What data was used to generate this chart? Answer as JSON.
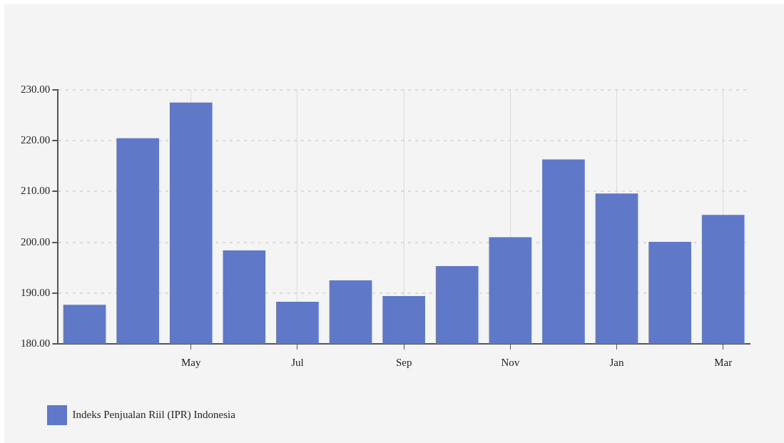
{
  "chart_data": {
    "type": "bar",
    "categories": [
      null,
      null,
      "May",
      null,
      "Jul",
      null,
      "Sep",
      null,
      "Nov",
      null,
      "Jan",
      null,
      "Mar"
    ],
    "series": [
      {
        "name": "Indeks Penjualan Riil (IPR) Indonesia",
        "color": "#5f78c8",
        "values": [
          187.7,
          220.5,
          227.5,
          198.4,
          188.3,
          192.5,
          189.4,
          195.3,
          201.0,
          216.3,
          209.6,
          200.1,
          205.4
        ]
      }
    ],
    "ylim": [
      180,
      230
    ],
    "yticks": [
      {
        "value": 180,
        "label": "180.00"
      },
      {
        "value": 190,
        "label": "190.00"
      },
      {
        "value": 200,
        "label": "200.00"
      },
      {
        "value": 210,
        "label": "210.00"
      },
      {
        "value": 220,
        "label": "220.00"
      },
      {
        "value": 230,
        "label": "230.00"
      }
    ],
    "grid": true,
    "legend": "bottom left"
  }
}
